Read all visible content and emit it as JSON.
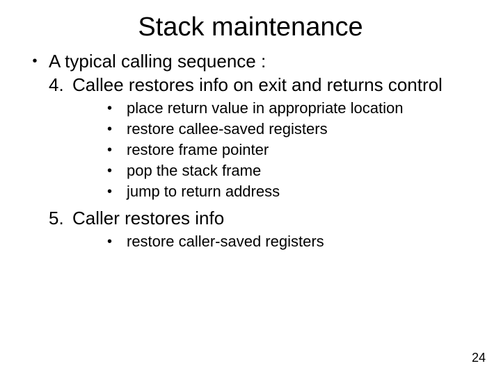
{
  "title": "Stack maintenance",
  "intro": "A typical calling sequence :",
  "item4": {
    "num": "4.",
    "text": "Callee restores info on exit and returns control",
    "subs": [
      "place return value in appropriate location",
      "restore callee-saved registers",
      "restore frame pointer",
      "pop the stack frame",
      "jump to return address"
    ]
  },
  "item5": {
    "num": "5.",
    "text": "Caller restores info",
    "subs": [
      "restore caller-saved registers"
    ]
  },
  "page_number": "24",
  "colors": {
    "text": "#000000",
    "background": "#ffffff"
  },
  "fonts": {
    "family": "Comic Sans MS",
    "title_size_pt": 38,
    "body_size_pt": 26,
    "sub_size_pt": 22,
    "pagenum_size_pt": 18
  }
}
